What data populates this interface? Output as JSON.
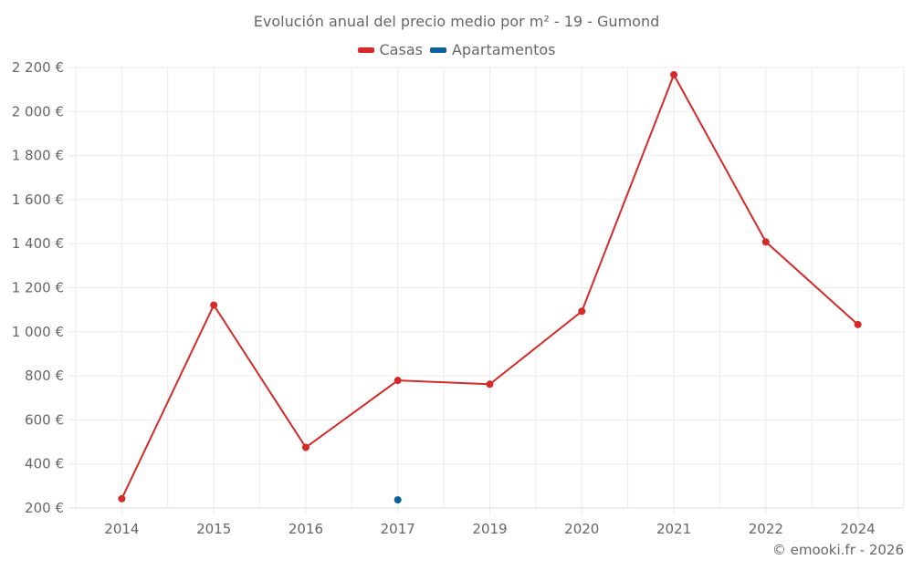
{
  "chart": {
    "title": "Evolución anual del precio medio por m² - 19 - Gumond",
    "credit": "© emooki.fr - 2026",
    "legend": [
      {
        "label": "Casas",
        "color": "#d42a2a"
      },
      {
        "label": "Apartamentos",
        "color": "#0b6199"
      }
    ]
  },
  "chart_data": {
    "type": "line",
    "title": "Evolución anual del precio medio por m² - 19 - Gumond",
    "xlabel": "",
    "ylabel": "",
    "categories": [
      "2014",
      "2015",
      "2016",
      "2017",
      "2019",
      "2020",
      "2021",
      "2022",
      "2024"
    ],
    "series": [
      {
        "name": "Casas",
        "color": "#d42a2a",
        "values": [
          242,
          1121,
          475,
          779,
          762,
          1093,
          2167,
          1408,
          1033
        ]
      },
      {
        "name": "Apartamentos",
        "color": "#0b6199",
        "values": [
          null,
          null,
          null,
          237,
          null,
          null,
          null,
          null,
          null
        ]
      }
    ],
    "y_ticks": [
      "200 €",
      "400 €",
      "600 €",
      "800 €",
      "1 000 €",
      "1 200 €",
      "1 400 €",
      "1 600 €",
      "1 800 €",
      "2 000 €",
      "2 200 €"
    ],
    "ylim": [
      200,
      2200
    ],
    "grid": true,
    "legend_position": "top"
  }
}
